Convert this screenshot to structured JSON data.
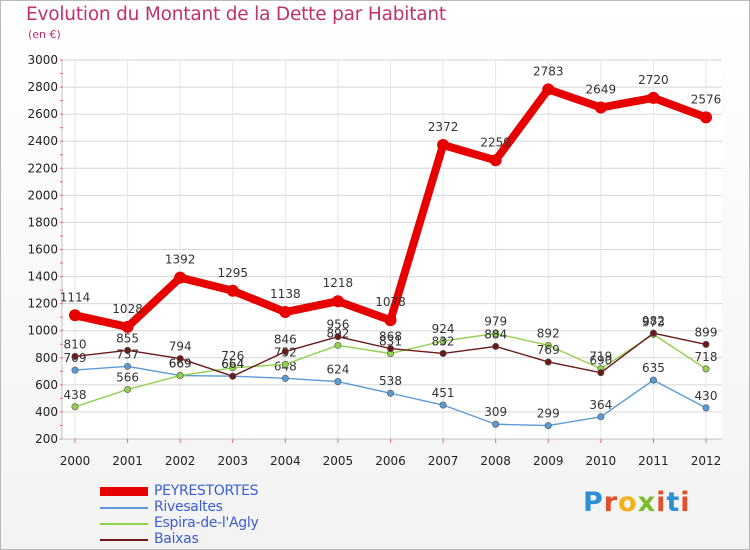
{
  "header": {
    "title": "Evolution du Montant de la Dette par Habitant",
    "subtitle": "(en €)"
  },
  "logo": {
    "text": "Proxiti"
  },
  "colors": {
    "title": "#c0316c",
    "PEYRESTORTES": "#e60000",
    "Rivesaltes": "#5b9bd5",
    "Espira-de-l'Agly": "#92d050",
    "Baixas": "#6b1a1a"
  },
  "chart_data": {
    "type": "line",
    "title": "Evolution du Montant de la Dette par Habitant",
    "subtitle": "(en €)",
    "xlabel": "",
    "ylabel": "",
    "x": [
      "2000",
      "2001",
      "2002",
      "2003",
      "2004",
      "2005",
      "2006",
      "2007",
      "2008",
      "2009",
      "2010",
      "2011",
      "2012"
    ],
    "ylim": [
      200,
      3000
    ],
    "yticks": [
      200,
      400,
      600,
      800,
      1000,
      1200,
      1400,
      1600,
      1800,
      2000,
      2200,
      2400,
      2600,
      2800,
      3000
    ],
    "grid": "horizontal",
    "legend": "bottom-left",
    "series": [
      {
        "name": "PEYRESTORTES",
        "color": "#e60000",
        "values": [
          1114,
          1028,
          1392,
          1295,
          1138,
          1218,
          1078,
          2372,
          2259,
          2783,
          2649,
          2720,
          2576
        ]
      },
      {
        "name": "Rivesaltes",
        "color": "#5b9bd5",
        "values": [
          709,
          737,
          669,
          664,
          648,
          624,
          538,
          451,
          309,
          299,
          364,
          635,
          430
        ]
      },
      {
        "name": "Espira-de-l'Agly",
        "color": "#92d050",
        "values": [
          438,
          566,
          669,
          726,
          752,
          892,
          831,
          924,
          979,
          892,
          719,
          973,
          718
        ]
      },
      {
        "name": "Baixas",
        "color": "#6b1a1a",
        "values": [
          810,
          855,
          794,
          664,
          846,
          956,
          868,
          832,
          884,
          769,
          690,
          982,
          899
        ]
      }
    ]
  }
}
